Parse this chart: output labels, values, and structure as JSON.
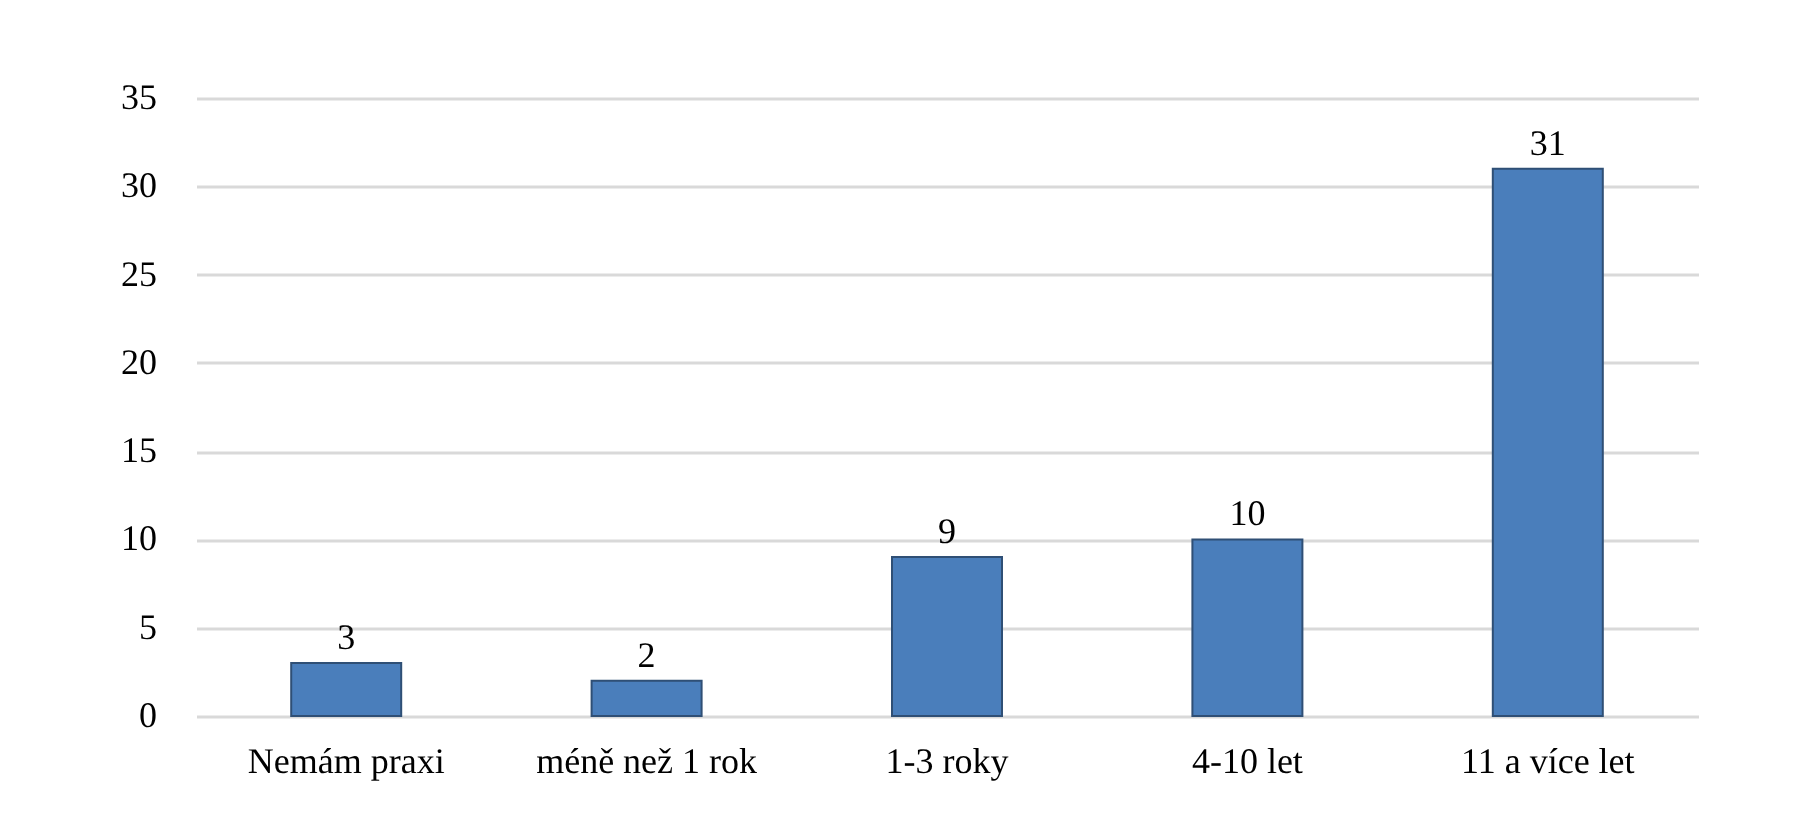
{
  "chart_data": {
    "type": "bar",
    "categories": [
      "Nemám praxi",
      "méně než 1 rok",
      "1-3 roky",
      "4-10 let",
      "11 a více let"
    ],
    "values": [
      3,
      2,
      9,
      10,
      31
    ],
    "color": "#4a7ebb",
    "ylim": [
      0,
      35
    ],
    "yticks": [
      0,
      5,
      10,
      15,
      20,
      25,
      30,
      35
    ],
    "grid": "y",
    "data_labels": true
  }
}
